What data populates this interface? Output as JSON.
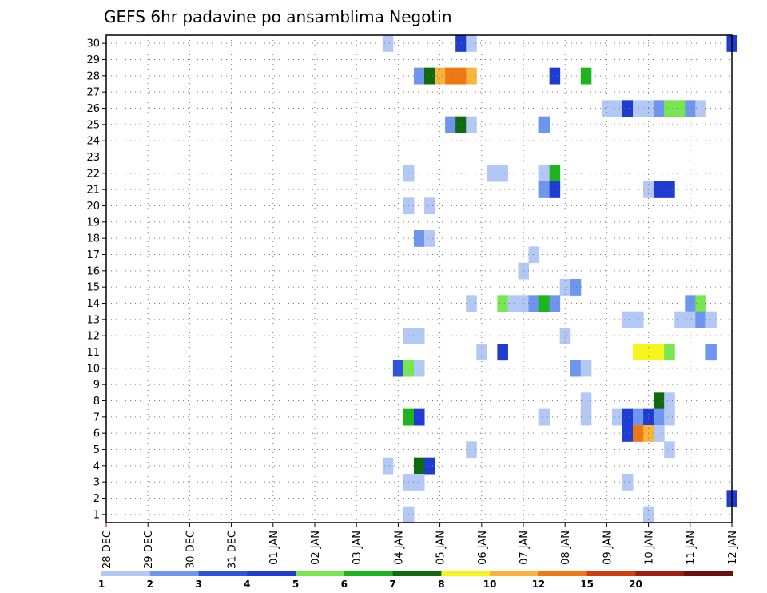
{
  "chart_data": {
    "type": "heatmap",
    "title": "GEFS 6hr padavine po ansamblima Negotin",
    "xlabel": "",
    "ylabel": "",
    "x_tick_labels": [
      "28 DEC",
      "29 DEC",
      "30 DEC",
      "31 DEC",
      "01 JAN",
      "02 JAN",
      "03 JAN",
      "04 JAN",
      "05 JAN",
      "06 JAN",
      "07 JAN",
      "08 JAN",
      "09 JAN",
      "10 JAN",
      "11 JAN",
      "12 JAN"
    ],
    "y_tick_labels": [
      "1",
      "2",
      "3",
      "4",
      "5",
      "6",
      "7",
      "8",
      "9",
      "10",
      "11",
      "12",
      "13",
      "14",
      "15",
      "16",
      "17",
      "18",
      "19",
      "20",
      "21",
      "22",
      "23",
      "24",
      "25",
      "26",
      "27",
      "28",
      "29",
      "30"
    ],
    "xlim_days": [
      0,
      15
    ],
    "ylim": [
      0.5,
      30.5
    ],
    "grid": true,
    "legend": {
      "position": "bottom",
      "levels": [
        "1",
        "2",
        "3",
        "4",
        "5",
        "6",
        "7",
        "8",
        "10",
        "12",
        "15",
        "20"
      ],
      "colors": [
        "#b4c8f5",
        "#6e96ee",
        "#2a55dc",
        "#1e3cd2",
        "#78e650",
        "#1eb41e",
        "#0f690f",
        "#f5f51e",
        "#fab43c",
        "#f07814",
        "#d23c0f",
        "#a01e0f",
        "#6e0f0f"
      ]
    },
    "cells_format": "[member, day_offset_from_28_DEC, color_level_index]",
    "cells": [
      [
        30,
        6.75,
        0
      ],
      [
        30,
        8.5,
        3
      ],
      [
        30,
        8.75,
        0
      ],
      [
        30,
        15.0,
        3
      ],
      [
        28,
        7.5,
        1
      ],
      [
        28,
        7.75,
        6
      ],
      [
        28,
        8.0,
        8
      ],
      [
        28,
        8.25,
        9
      ],
      [
        28,
        8.5,
        9
      ],
      [
        28,
        8.75,
        8
      ],
      [
        28,
        10.75,
        3
      ],
      [
        28,
        11.5,
        5
      ],
      [
        26,
        12.0,
        0
      ],
      [
        26,
        12.25,
        0
      ],
      [
        26,
        12.5,
        3
      ],
      [
        26,
        12.75,
        0
      ],
      [
        26,
        13.0,
        0
      ],
      [
        26,
        13.25,
        1
      ],
      [
        26,
        13.5,
        4
      ],
      [
        26,
        13.75,
        4
      ],
      [
        26,
        14.0,
        1
      ],
      [
        26,
        14.25,
        0
      ],
      [
        25,
        8.25,
        1
      ],
      [
        25,
        8.5,
        6
      ],
      [
        25,
        8.75,
        0
      ],
      [
        25,
        10.5,
        1
      ],
      [
        22,
        7.25,
        0
      ],
      [
        22,
        9.25,
        0
      ],
      [
        22,
        9.5,
        0
      ],
      [
        22,
        10.5,
        0
      ],
      [
        22,
        10.75,
        5
      ],
      [
        21,
        10.5,
        1
      ],
      [
        21,
        10.75,
        3
      ],
      [
        21,
        13.0,
        0
      ],
      [
        21,
        13.25,
        3
      ],
      [
        21,
        13.5,
        3
      ],
      [
        20,
        7.25,
        0
      ],
      [
        20,
        7.75,
        0
      ],
      [
        18,
        7.5,
        1
      ],
      [
        18,
        7.75,
        0
      ],
      [
        17,
        10.25,
        0
      ],
      [
        16,
        10.0,
        0
      ],
      [
        15,
        11.0,
        0
      ],
      [
        15,
        11.25,
        1
      ],
      [
        14,
        8.75,
        0
      ],
      [
        14,
        9.5,
        4
      ],
      [
        14,
        9.75,
        0
      ],
      [
        14,
        10.0,
        0
      ],
      [
        14,
        10.25,
        1
      ],
      [
        14,
        10.5,
        5
      ],
      [
        14,
        10.75,
        1
      ],
      [
        14,
        14.0,
        1
      ],
      [
        14,
        14.25,
        4
      ],
      [
        13,
        12.5,
        0
      ],
      [
        13,
        12.75,
        0
      ],
      [
        13,
        13.75,
        0
      ],
      [
        13,
        14.0,
        0
      ],
      [
        13,
        14.25,
        1
      ],
      [
        13,
        14.5,
        0
      ],
      [
        12,
        7.25,
        0
      ],
      [
        12,
        7.5,
        0
      ],
      [
        12,
        11.0,
        0
      ],
      [
        11,
        9.0,
        0
      ],
      [
        11,
        9.5,
        3
      ],
      [
        11,
        12.75,
        7
      ],
      [
        11,
        13.0,
        7
      ],
      [
        11,
        13.25,
        7
      ],
      [
        11,
        13.5,
        4
      ],
      [
        11,
        14.5,
        1
      ],
      [
        10,
        7.0,
        2
      ],
      [
        10,
        7.25,
        4
      ],
      [
        10,
        7.5,
        0
      ],
      [
        10,
        11.25,
        1
      ],
      [
        10,
        11.5,
        0
      ],
      [
        8,
        11.5,
        0
      ],
      [
        8,
        13.25,
        6
      ],
      [
        8,
        13.5,
        0
      ],
      [
        7,
        7.25,
        5
      ],
      [
        7,
        7.5,
        3
      ],
      [
        7,
        10.5,
        0
      ],
      [
        7,
        11.5,
        0
      ],
      [
        7,
        12.25,
        0
      ],
      [
        7,
        12.5,
        3
      ],
      [
        7,
        12.75,
        1
      ],
      [
        7,
        13.0,
        3
      ],
      [
        7,
        13.25,
        1
      ],
      [
        7,
        13.5,
        0
      ],
      [
        6,
        12.5,
        3
      ],
      [
        6,
        12.75,
        9
      ],
      [
        6,
        13.0,
        8
      ],
      [
        6,
        13.25,
        0
      ],
      [
        5,
        8.75,
        0
      ],
      [
        5,
        13.5,
        0
      ],
      [
        4,
        6.75,
        0
      ],
      [
        4,
        7.5,
        6
      ],
      [
        4,
        7.75,
        3
      ],
      [
        3,
        7.25,
        0
      ],
      [
        3,
        7.5,
        0
      ],
      [
        3,
        12.5,
        0
      ],
      [
        2,
        15.0,
        3
      ],
      [
        1,
        7.25,
        0
      ],
      [
        1,
        13.0,
        0
      ]
    ]
  }
}
